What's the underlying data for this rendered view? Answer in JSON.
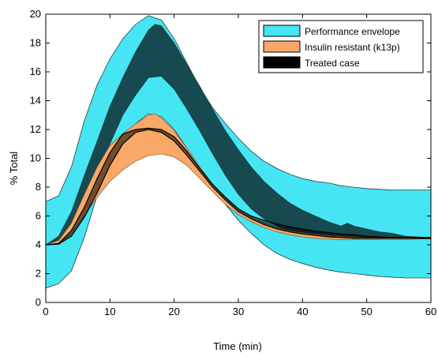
{
  "chart_data": {
    "type": "area",
    "xlabel": "Time (min)",
    "ylabel": "% Total",
    "xlim": [
      0,
      60
    ],
    "ylim": [
      0,
      20
    ],
    "xticks": [
      0,
      10,
      20,
      30,
      40,
      50,
      60
    ],
    "yticks": [
      0,
      2,
      4,
      6,
      8,
      10,
      12,
      14,
      16,
      18,
      20
    ],
    "grid": false,
    "legend_position": "top-right",
    "series": [
      {
        "name": "Performance envelope",
        "color": "#45E5F4",
        "upper": [
          [
            0,
            7.0
          ],
          [
            2,
            7.4
          ],
          [
            4,
            9.4
          ],
          [
            6,
            12.6
          ],
          [
            8,
            15.1
          ],
          [
            10,
            16.9
          ],
          [
            12,
            18.3
          ],
          [
            14,
            19.3
          ],
          [
            16,
            19.9
          ],
          [
            18,
            19.6
          ],
          [
            20,
            18.3
          ],
          [
            22,
            16.6
          ],
          [
            24,
            14.9
          ],
          [
            26,
            13.5
          ],
          [
            28,
            12.4
          ],
          [
            30,
            11.4
          ],
          [
            32,
            10.5
          ],
          [
            34,
            9.8
          ],
          [
            36,
            9.3
          ],
          [
            38,
            8.9
          ],
          [
            40,
            8.6
          ],
          [
            42,
            8.4
          ],
          [
            44,
            8.3
          ],
          [
            46,
            8.1
          ],
          [
            48,
            8.0
          ],
          [
            50,
            7.9
          ],
          [
            52,
            7.85
          ],
          [
            54,
            7.8
          ],
          [
            56,
            7.8
          ],
          [
            58,
            7.8
          ],
          [
            60,
            7.8
          ]
        ],
        "lower": [
          [
            0,
            1.0
          ],
          [
            2,
            1.3
          ],
          [
            4,
            2.2
          ],
          [
            6,
            4.5
          ],
          [
            8,
            7.4
          ],
          [
            10,
            9.8
          ],
          [
            12,
            11.4
          ],
          [
            14,
            12.4
          ],
          [
            16,
            13.1
          ],
          [
            18,
            12.9
          ],
          [
            20,
            12.0
          ],
          [
            22,
            10.7
          ],
          [
            24,
            9.3
          ],
          [
            26,
            8.0
          ],
          [
            28,
            6.8
          ],
          [
            30,
            5.7
          ],
          [
            32,
            4.8
          ],
          [
            34,
            4.0
          ],
          [
            36,
            3.4
          ],
          [
            38,
            3.0
          ],
          [
            40,
            2.7
          ],
          [
            42,
            2.45
          ],
          [
            44,
            2.25
          ],
          [
            46,
            2.1
          ],
          [
            48,
            2.0
          ],
          [
            50,
            1.9
          ],
          [
            52,
            1.8
          ],
          [
            54,
            1.75
          ],
          [
            56,
            1.7
          ],
          [
            58,
            1.7
          ],
          [
            60,
            1.7
          ]
        ]
      },
      {
        "name": "Insulin resistant (k13p)",
        "color": "#F9A867",
        "upper": [
          [
            0,
            4.0
          ],
          [
            2,
            4.3
          ],
          [
            4,
            5.5
          ],
          [
            6,
            7.5
          ],
          [
            8,
            9.4
          ],
          [
            10,
            10.9
          ],
          [
            12,
            11.7
          ],
          [
            14,
            12.4
          ],
          [
            16,
            13.0
          ],
          [
            17,
            13.1
          ],
          [
            18,
            12.8
          ],
          [
            20,
            11.9
          ],
          [
            22,
            10.7
          ],
          [
            24,
            9.4
          ],
          [
            26,
            8.2
          ],
          [
            28,
            7.2
          ],
          [
            30,
            6.4
          ],
          [
            32,
            5.9
          ],
          [
            34,
            5.5
          ],
          [
            36,
            5.2
          ],
          [
            38,
            5.0
          ],
          [
            40,
            4.85
          ],
          [
            42,
            4.75
          ],
          [
            44,
            4.65
          ],
          [
            46,
            4.6
          ],
          [
            48,
            4.55
          ],
          [
            50,
            4.5
          ],
          [
            52,
            4.5
          ],
          [
            54,
            4.5
          ],
          [
            56,
            4.5
          ],
          [
            58,
            4.5
          ],
          [
            60,
            4.5
          ]
        ],
        "lower": [
          [
            0,
            4.0
          ],
          [
            2,
            4.1
          ],
          [
            4,
            4.8
          ],
          [
            6,
            6.0
          ],
          [
            8,
            7.3
          ],
          [
            10,
            8.4
          ],
          [
            12,
            9.2
          ],
          [
            14,
            9.8
          ],
          [
            16,
            10.2
          ],
          [
            18,
            10.3
          ],
          [
            20,
            10.1
          ],
          [
            22,
            9.5
          ],
          [
            24,
            8.6
          ],
          [
            26,
            7.7
          ],
          [
            28,
            6.8
          ],
          [
            30,
            6.1
          ],
          [
            32,
            5.6
          ],
          [
            34,
            5.2
          ],
          [
            36,
            4.9
          ],
          [
            38,
            4.7
          ],
          [
            40,
            4.55
          ],
          [
            42,
            4.45
          ],
          [
            44,
            4.4
          ],
          [
            46,
            4.35
          ],
          [
            48,
            4.35
          ],
          [
            50,
            4.35
          ],
          [
            52,
            4.35
          ],
          [
            54,
            4.35
          ],
          [
            56,
            4.35
          ],
          [
            58,
            4.4
          ],
          [
            60,
            4.4
          ]
        ]
      },
      {
        "name": "Treated case",
        "color": "#000000",
        "upper": [
          [
            0,
            4.0
          ],
          [
            2,
            4.1
          ],
          [
            4,
            5.0
          ],
          [
            6,
            6.6
          ],
          [
            8,
            8.6
          ],
          [
            10,
            10.4
          ],
          [
            12,
            11.7
          ],
          [
            14,
            12.0
          ],
          [
            16,
            12.1
          ],
          [
            18,
            12.0
          ],
          [
            20,
            11.5
          ],
          [
            22,
            10.5
          ],
          [
            24,
            9.3
          ],
          [
            26,
            8.2
          ],
          [
            28,
            7.3
          ],
          [
            30,
            6.5
          ],
          [
            32,
            6.0
          ],
          [
            34,
            5.7
          ],
          [
            36,
            5.45
          ],
          [
            38,
            5.25
          ],
          [
            40,
            5.1
          ],
          [
            42,
            4.95
          ],
          [
            44,
            4.85
          ],
          [
            46,
            4.75
          ],
          [
            48,
            4.7
          ],
          [
            50,
            4.6
          ],
          [
            52,
            4.55
          ],
          [
            54,
            4.5
          ],
          [
            56,
            4.5
          ],
          [
            58,
            4.5
          ],
          [
            60,
            4.5
          ]
        ],
        "lower": [
          [
            0,
            4.0
          ],
          [
            2,
            4.05
          ],
          [
            4,
            4.6
          ],
          [
            6,
            5.9
          ],
          [
            8,
            7.6
          ],
          [
            10,
            9.5
          ],
          [
            12,
            11.0
          ],
          [
            14,
            11.8
          ],
          [
            16,
            12.0
          ],
          [
            18,
            11.8
          ],
          [
            20,
            11.2
          ],
          [
            22,
            10.2
          ],
          [
            24,
            9.1
          ],
          [
            26,
            8.0
          ],
          [
            28,
            7.1
          ],
          [
            30,
            6.3
          ],
          [
            32,
            5.8
          ],
          [
            34,
            5.4
          ],
          [
            36,
            5.1
          ],
          [
            38,
            4.9
          ],
          [
            40,
            4.75
          ],
          [
            42,
            4.65
          ],
          [
            44,
            4.55
          ],
          [
            46,
            4.5
          ],
          [
            48,
            4.45
          ],
          [
            50,
            4.45
          ],
          [
            52,
            4.45
          ],
          [
            54,
            4.45
          ],
          [
            56,
            4.45
          ],
          [
            58,
            4.45
          ],
          [
            60,
            4.45
          ]
        ]
      }
    ],
    "overlap_band": {
      "color": "#174A50",
      "upper": [
        [
          0,
          4.0
        ],
        [
          2,
          4.6
        ],
        [
          4,
          6.3
        ],
        [
          6,
          8.8
        ],
        [
          8,
          11.2
        ],
        [
          10,
          13.6
        ],
        [
          12,
          15.6
        ],
        [
          14,
          17.4
        ],
        [
          16,
          18.9
        ],
        [
          17,
          19.3
        ],
        [
          18,
          19.2
        ],
        [
          20,
          18.0
        ],
        [
          22,
          16.5
        ],
        [
          24,
          15.0
        ],
        [
          26,
          13.4
        ],
        [
          28,
          11.9
        ],
        [
          30,
          10.6
        ],
        [
          32,
          9.4
        ],
        [
          34,
          8.4
        ],
        [
          36,
          7.6
        ],
        [
          38,
          6.9
        ],
        [
          40,
          6.4
        ],
        [
          42,
          6.0
        ],
        [
          44,
          5.6
        ],
        [
          46,
          5.3
        ],
        [
          47,
          5.5
        ],
        [
          48,
          5.3
        ],
        [
          50,
          5.1
        ],
        [
          52,
          4.9
        ],
        [
          54,
          4.8
        ],
        [
          56,
          4.6
        ],
        [
          58,
          4.55
        ],
        [
          60,
          4.5
        ]
      ],
      "lower": [
        [
          0,
          4.0
        ],
        [
          2,
          4.05
        ],
        [
          4,
          5.0
        ],
        [
          6,
          6.8
        ],
        [
          8,
          8.8
        ],
        [
          10,
          11.0
        ],
        [
          12,
          13.0
        ],
        [
          14,
          14.4
        ],
        [
          16,
          15.6
        ],
        [
          18,
          15.7
        ],
        [
          20,
          14.8
        ],
        [
          22,
          13.4
        ],
        [
          24,
          11.9
        ],
        [
          26,
          10.3
        ],
        [
          28,
          8.8
        ],
        [
          30,
          7.5
        ],
        [
          32,
          6.5
        ],
        [
          34,
          5.8
        ],
        [
          36,
          5.3
        ],
        [
          38,
          4.95
        ],
        [
          40,
          4.75
        ],
        [
          42,
          4.6
        ],
        [
          44,
          4.5
        ],
        [
          46,
          4.45
        ],
        [
          48,
          4.4
        ],
        [
          50,
          4.4
        ],
        [
          52,
          4.4
        ],
        [
          54,
          4.4
        ],
        [
          56,
          4.4
        ],
        [
          58,
          4.4
        ],
        [
          60,
          4.4
        ]
      ]
    }
  }
}
